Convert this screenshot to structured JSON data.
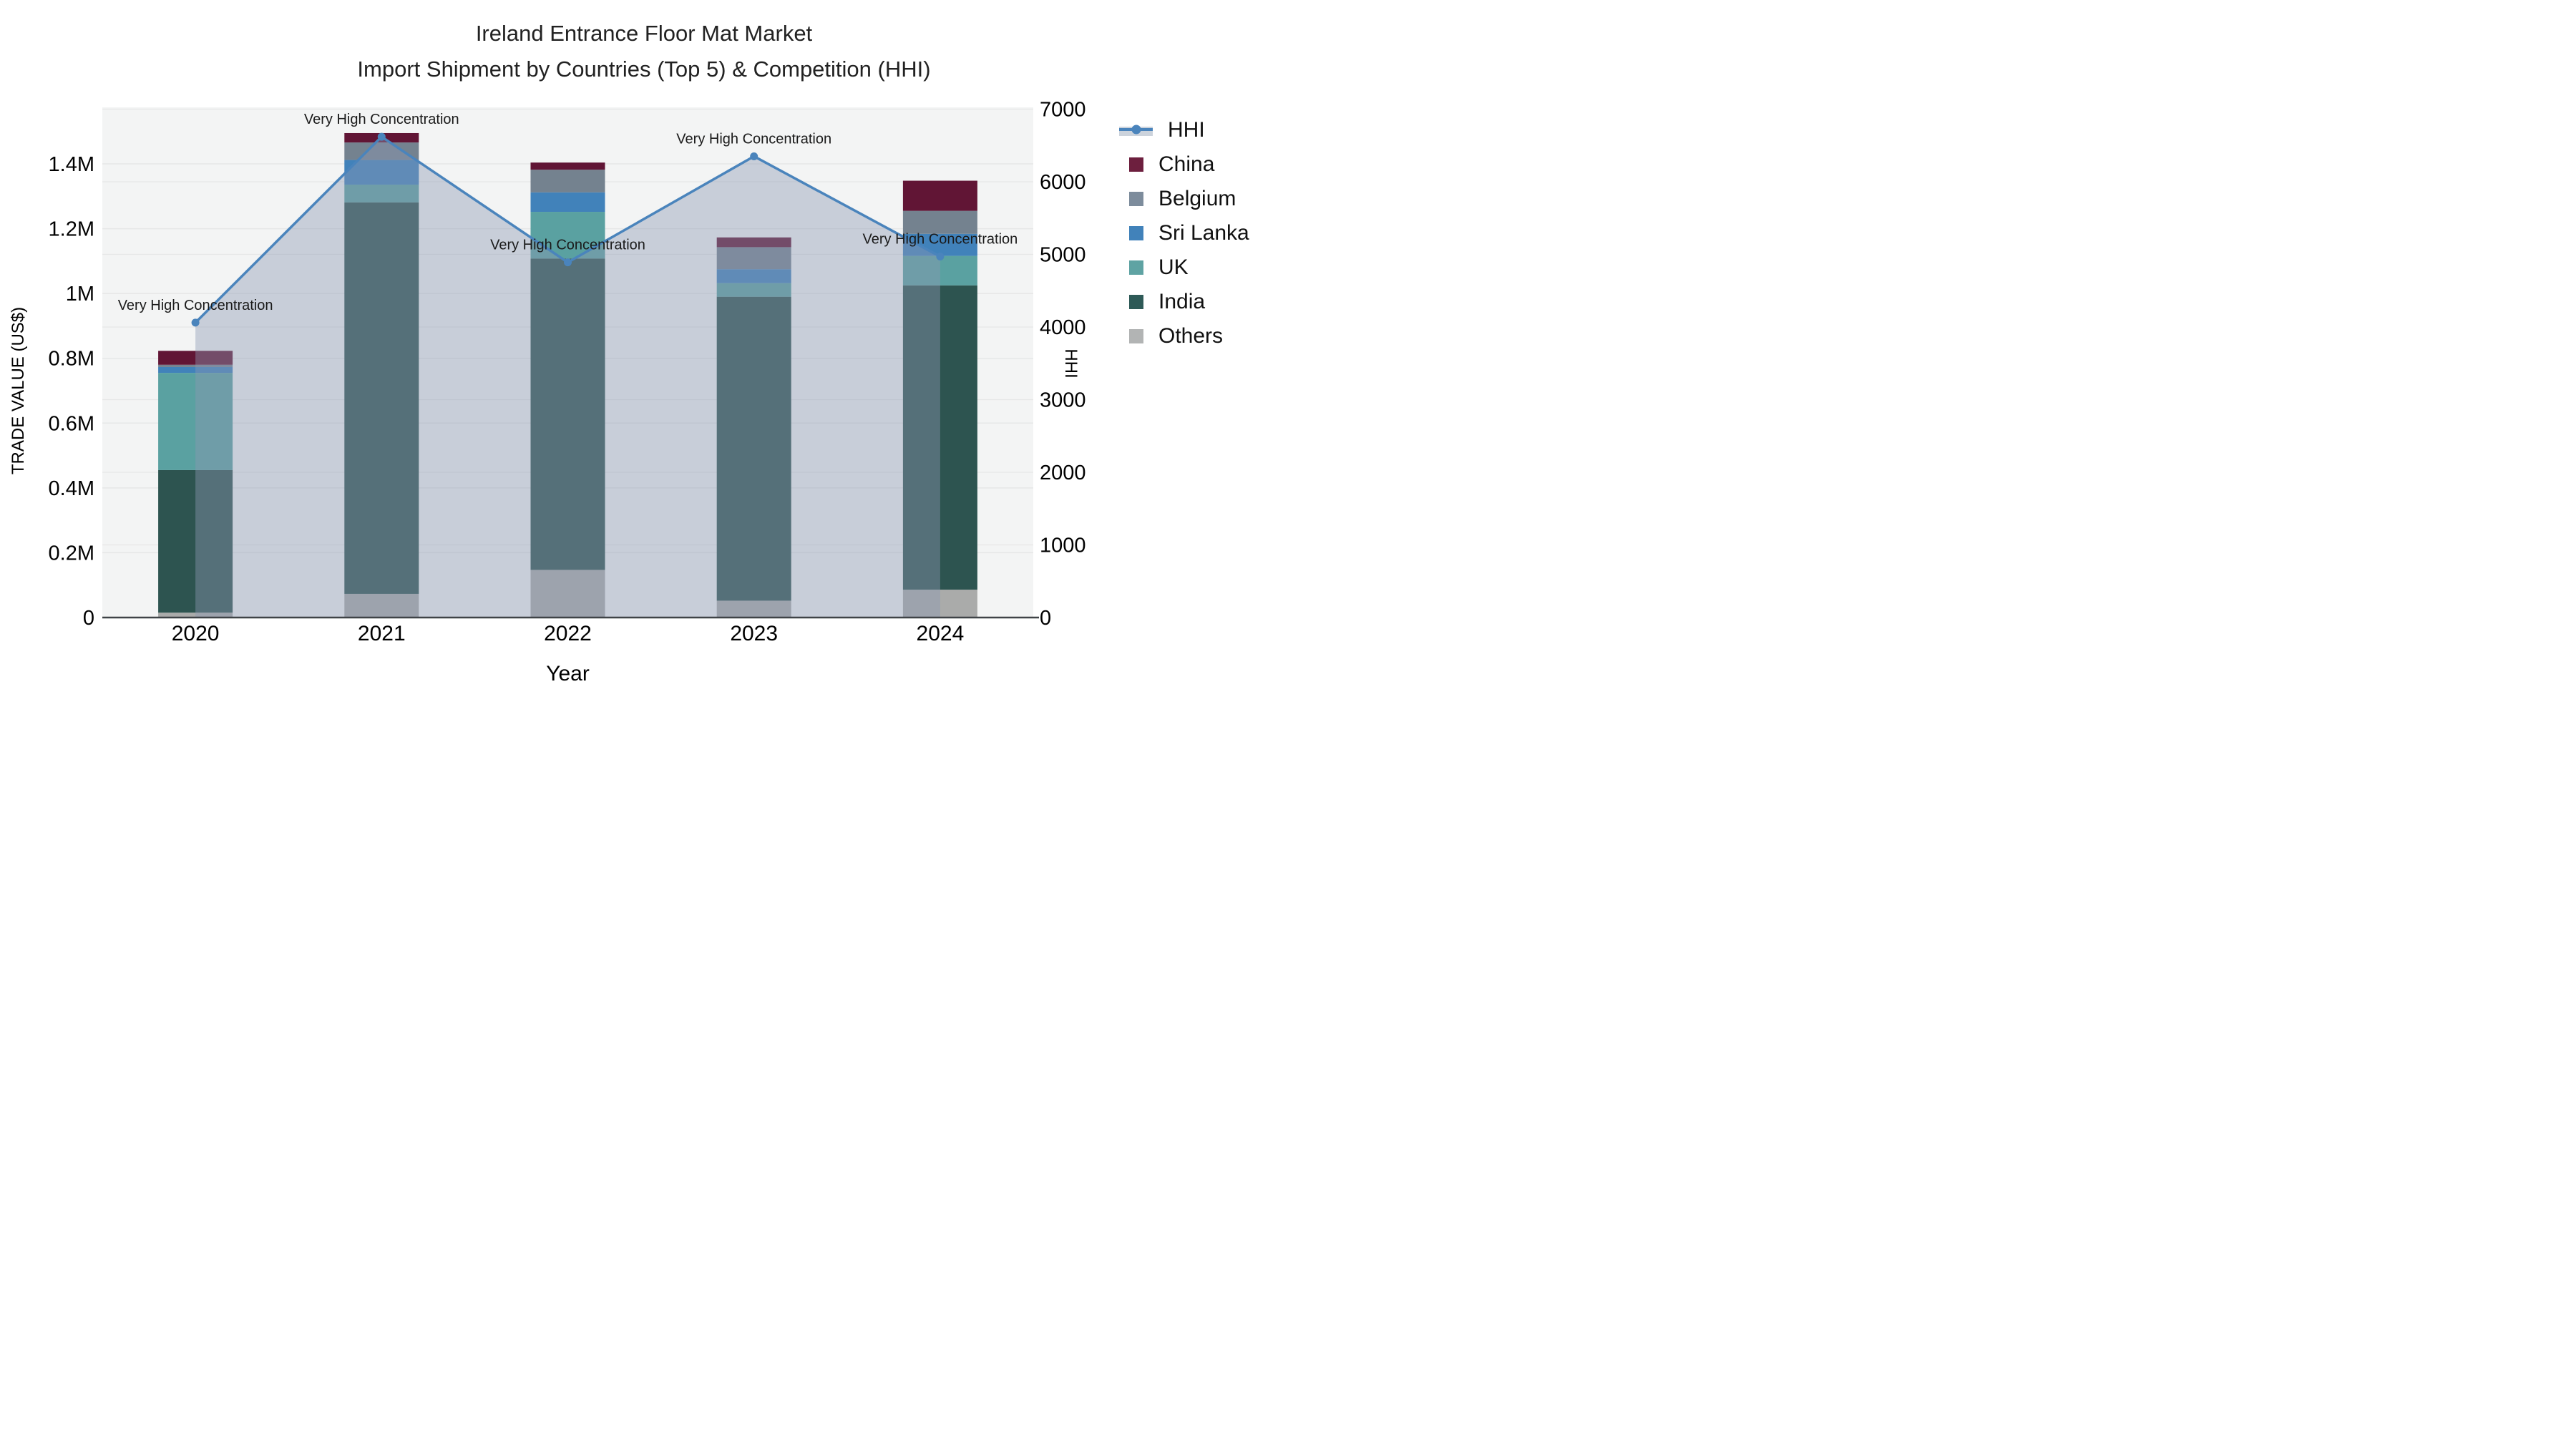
{
  "title": {
    "line1": "Ireland Entrance Floor Mat Market",
    "line2": "Import Shipment by Countries (Top 5) & Competition (HHI)"
  },
  "chart_data": {
    "type": "bar",
    "subtype": "stacked-bars-with-dual-axis-line",
    "categories": [
      "2020",
      "2021",
      "2022",
      "2023",
      "2024"
    ],
    "bar_series_bottom_to_top": [
      {
        "name": "Others",
        "color": "#aaabaa",
        "values": [
          15000,
          73000,
          147000,
          52000,
          86000
        ]
      },
      {
        "name": "India",
        "color": "#2d5450",
        "values": [
          440000,
          1208000,
          961000,
          938000,
          939000
        ]
      },
      {
        "name": "UK",
        "color": "#5aa1a1",
        "values": [
          300000,
          55000,
          144000,
          42000,
          91000
        ]
      },
      {
        "name": "Sri Lanka",
        "color": "#4182ba",
        "values": [
          18000,
          76000,
          60000,
          43000,
          68000
        ]
      },
      {
        "name": "Belgium",
        "color": "#74828f",
        "values": [
          7000,
          54000,
          70000,
          68000,
          71000
        ]
      },
      {
        "name": "China",
        "color": "#611535",
        "values": [
          43000,
          29000,
          22000,
          30000,
          93000
        ]
      }
    ],
    "line_series": {
      "name": "HHI",
      "color": "#4a84bc",
      "area_fill": "rgba(140,153,178,0.42)",
      "values": [
        4060,
        6620,
        4890,
        6350,
        4970
      ]
    },
    "point_annotations": [
      "Very High Concentration",
      "Very High Concentration",
      "Very High Concentration",
      "Very High Concentration",
      "Very High Concentration"
    ],
    "xlabel": "Year",
    "ylabel_left": "TRADE VALUE (US$)",
    "ylabel_right": "HHI",
    "y_left_ticks": [
      {
        "label": "0",
        "value": 0
      },
      {
        "label": "0.2M",
        "value": 200000
      },
      {
        "label": "0.4M",
        "value": 400000
      },
      {
        "label": "0.6M",
        "value": 600000
      },
      {
        "label": "0.8M",
        "value": 800000
      },
      {
        "label": "1M",
        "value": 1000000
      },
      {
        "label": "1.2M",
        "value": 1200000
      },
      {
        "label": "1.4M",
        "value": 1400000
      }
    ],
    "y_right_ticks": [
      {
        "label": "0",
        "value": 0
      },
      {
        "label": "1000",
        "value": 1000
      },
      {
        "label": "2000",
        "value": 2000
      },
      {
        "label": "3000",
        "value": 3000
      },
      {
        "label": "4000",
        "value": 4000
      },
      {
        "label": "5000",
        "value": 5000
      },
      {
        "label": "6000",
        "value": 6000
      },
      {
        "label": "7000",
        "value": 7000
      }
    ],
    "legend_top_to_bottom": [
      {
        "label": "HHI",
        "type": "line",
        "color": "#4a84bc",
        "band": "#ccd3dc"
      },
      {
        "label": "China",
        "type": "swatch",
        "color": "#6d1f3e"
      },
      {
        "label": "Belgium",
        "type": "swatch",
        "color": "#7d8c9c"
      },
      {
        "label": "Sri Lanka",
        "type": "swatch",
        "color": "#4182ba"
      },
      {
        "label": "UK",
        "type": "swatch",
        "color": "#5fa3a3"
      },
      {
        "label": "India",
        "type": "swatch",
        "color": "#2e5a57"
      },
      {
        "label": "Others",
        "type": "swatch",
        "color": "#b2b4b4"
      }
    ],
    "style": {
      "plot_bg": "#f3f4f4",
      "grid_color": "#e6e7e7",
      "axis_line_color": "#3f4347",
      "annotation_color": "#1a1a1a"
    }
  }
}
